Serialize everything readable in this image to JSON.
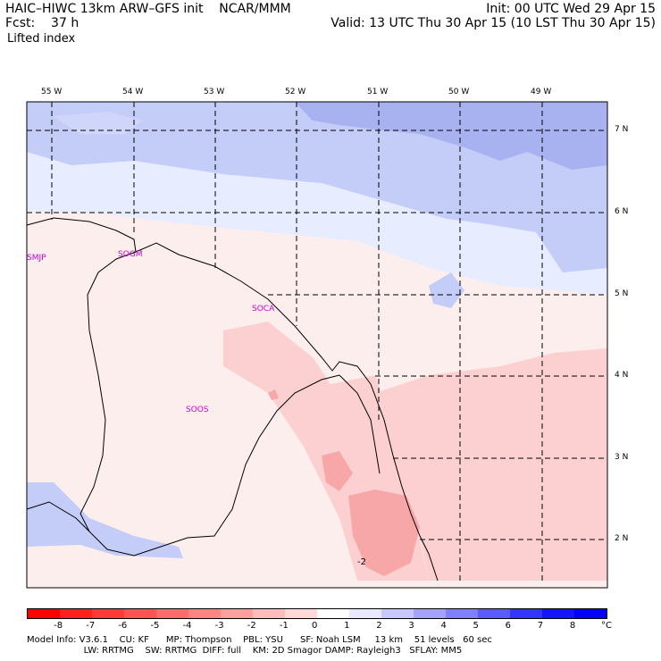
{
  "header": {
    "line1_left": "HAIC–HIWC 13km ARW–GFS init    NCAR/MMM",
    "line1_right": "Init: 00 UTC Wed 29 Apr 15",
    "line2_left": "Fcst:    37 h",
    "line2_right": "Valid: 13 UTC Thu 30 Apr 15 (10 LST Thu 30 Apr 15)",
    "field": "Lifted index"
  },
  "map": {
    "lon_labels": [
      "55 W",
      "54 W",
      "53 W",
      "52 W",
      "51 W",
      "50 W",
      "49 W"
    ],
    "lat_labels": [
      "7 N",
      "6 N",
      "5 N",
      "4 N",
      "3 N",
      "2 N"
    ],
    "stations": [
      {
        "id": "SMJP"
      },
      {
        "id": "SOGM"
      },
      {
        "id": "SOCA"
      },
      {
        "id": "SOOS"
      }
    ],
    "contour_label": "-2",
    "colors": {
      "blue_light": "#e8ecff",
      "blue_mid": "#c4ccf8",
      "blue_dark": "#a8b2f0",
      "pink_light": "#fdeeee",
      "pink_mid": "#fcd0d0",
      "pink_dark": "#f7a7a7",
      "station": "#d000d0"
    }
  },
  "colorbar": {
    "tick_labels": [
      "-8",
      "-7",
      "-6",
      "-5",
      "-4",
      "-3",
      "-2",
      "-1",
      "0",
      "1",
      "2",
      "3",
      "4",
      "5",
      "6",
      "7",
      "8"
    ],
    "unit": "°C",
    "colors": [
      "#ff0000",
      "#ff2020",
      "#ff3a3a",
      "#ff5252",
      "#ff6b6b",
      "#ff8585",
      "#ffa0a0",
      "#ffbcbc",
      "#ffd8d8",
      "#ffffff",
      "#e8e8ff",
      "#c8c8ff",
      "#a4a4ff",
      "#8080ff",
      "#5a5aff",
      "#3434ff",
      "#1414ff",
      "#0000ff"
    ]
  },
  "footer": {
    "line1": "Model Info: V3.6.1    CU: KF      MP: Thompson    PBL: YSU      SF: Noah LSM     13 km    51 levels   60 sec",
    "line2": "                    LW: RRTMG    SW: RRTMG  DIFF: full    KM: 2D Smagor DAMP: Rayleigh3   SFLAY: MM5"
  }
}
